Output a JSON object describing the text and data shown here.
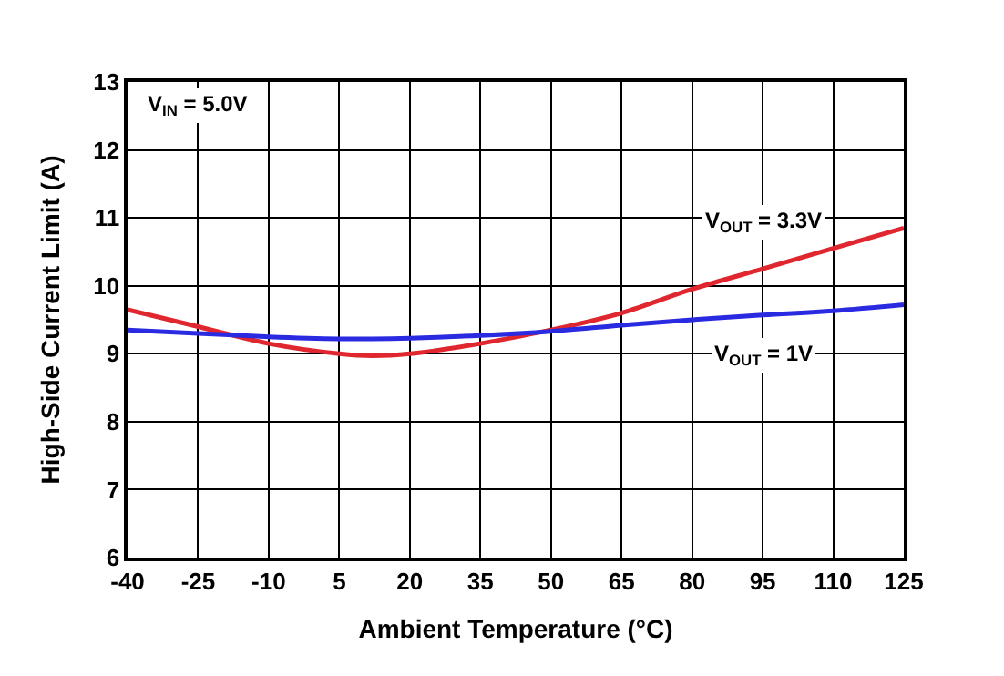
{
  "chart_data": {
    "type": "line",
    "xlabel": "Ambient Temperature (°C)",
    "ylabel": "High-Side Current Limit (A)",
    "x": [
      -40,
      -25,
      -10,
      5,
      12,
      20,
      35,
      50,
      65,
      80,
      95,
      110,
      125
    ],
    "series": [
      {
        "name": "V$_{OUT}$ = 3.3V",
        "color": "#e0262e",
        "values": [
          9.65,
          9.4,
          9.15,
          9.0,
          8.97,
          9.0,
          9.15,
          9.35,
          9.6,
          9.95,
          10.25,
          10.55,
          10.85
        ]
      },
      {
        "name": "V$_{OUT}$ = 1V",
        "color": "#2a2ae0",
        "values": [
          9.35,
          9.3,
          9.25,
          9.22,
          9.22,
          9.23,
          9.27,
          9.33,
          9.42,
          9.5,
          9.57,
          9.63,
          9.72
        ]
      }
    ],
    "annotations": [
      "V$_{IN}$ = 5.0V"
    ],
    "xlim": [
      -40,
      125
    ],
    "xticks": [
      -40,
      -25,
      -10,
      5,
      20,
      35,
      50,
      65,
      80,
      95,
      110,
      125
    ],
    "ylim": [
      6,
      13
    ],
    "yticks": [
      6,
      7,
      8,
      9,
      10,
      11,
      12,
      13
    ],
    "grid": true,
    "legend": false,
    "marker": "none",
    "line_style": "solid"
  }
}
